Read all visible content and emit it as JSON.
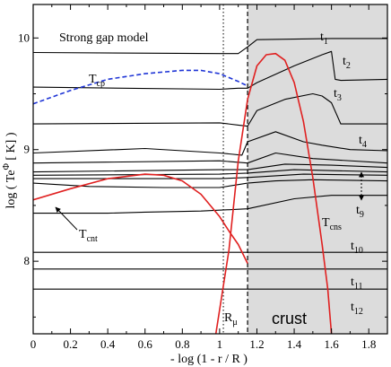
{
  "chart_data": {
    "type": "line",
    "title": "Strong gap model",
    "xlabel": "- log (1 - r / R )",
    "ylabel": "log ( Te",
    "ylabel_sup": "Φ",
    "ylabel_tail": " [ K] )",
    "xlim": [
      0,
      1.9
    ],
    "ylim": [
      7.35,
      10.3
    ],
    "xticks": [
      0,
      0.2,
      0.4,
      0.6,
      0.8,
      1,
      1.2,
      1.4,
      1.6,
      1.8
    ],
    "xtick_labels": [
      "0",
      "0.2",
      "0.4",
      "0.6",
      "0.8",
      "1",
      "1.2",
      "1.4",
      "1.6",
      "1.8"
    ],
    "yticks": [
      8,
      9,
      10
    ],
    "ytick_labels": [
      "8",
      "9",
      "10"
    ],
    "grid": false,
    "legend": "none",
    "crust_region": {
      "x_from": 1.15,
      "x_to": 1.9,
      "color": "#dcdcdc",
      "label": "crust"
    },
    "vlines": [
      {
        "name": "R_mu",
        "x": 1.02,
        "style": "dotted"
      },
      {
        "name": "crust_boundary",
        "x": 1.15,
        "style": "dashed"
      }
    ],
    "labels": {
      "t1": {
        "main": "t",
        "sub": "1"
      },
      "t2": {
        "main": "t",
        "sub": "2"
      },
      "t3": {
        "main": "t",
        "sub": "3"
      },
      "t4": {
        "main": "t",
        "sub": "4"
      },
      "t9": {
        "main": "t",
        "sub": "9"
      },
      "t10": {
        "main": "t",
        "sub": "10"
      },
      "t11": {
        "main": "t",
        "sub": "11"
      },
      "t12": {
        "main": "t",
        "sub": "12"
      },
      "tcp": {
        "main": "T",
        "sub": "cp"
      },
      "tcnt": {
        "main": "T",
        "sub": "cnt"
      },
      "tcns": {
        "main": "T",
        "sub": "cns"
      },
      "rmu": {
        "main": "R",
        "sub": "μ"
      }
    },
    "series": [
      {
        "id": "t1",
        "color": "#000000",
        "style": "solid",
        "x": [
          0,
          1.0,
          1.1,
          1.15,
          1.2,
          1.4,
          1.6,
          1.9
        ],
        "y": [
          9.87,
          9.86,
          9.86,
          9.92,
          9.985,
          9.99,
          9.995,
          9.995
        ]
      },
      {
        "id": "t2",
        "color": "#000000",
        "style": "solid",
        "x": [
          0,
          1.0,
          1.1,
          1.15,
          1.2,
          1.4,
          1.55,
          1.6,
          1.62,
          1.65,
          1.9
        ],
        "y": [
          9.56,
          9.54,
          9.55,
          9.55,
          9.6,
          9.75,
          9.85,
          9.88,
          9.63,
          9.62,
          9.63
        ]
      },
      {
        "id": "t3",
        "color": "#000000",
        "style": "solid",
        "x": [
          0,
          1.0,
          1.1,
          1.15,
          1.2,
          1.35,
          1.5,
          1.55,
          1.6,
          1.65,
          1.9
        ],
        "y": [
          9.23,
          9.24,
          9.22,
          9.21,
          9.35,
          9.45,
          9.5,
          9.48,
          9.42,
          9.23,
          9.23
        ]
      },
      {
        "id": "t4",
        "color": "#000000",
        "style": "solid",
        "x": [
          0,
          0.6,
          1.0,
          1.12,
          1.15,
          1.3,
          1.45,
          1.55,
          1.7,
          1.9
        ],
        "y": [
          8.97,
          9.01,
          8.97,
          8.95,
          9.07,
          9.16,
          9.07,
          9.04,
          9.0,
          8.99
        ]
      },
      {
        "id": "t5",
        "color": "#000000",
        "style": "solid",
        "x": [
          0,
          1.0,
          1.15,
          1.3,
          1.5,
          1.9
        ],
        "y": [
          8.88,
          8.9,
          8.88,
          8.97,
          8.92,
          8.88
        ]
      },
      {
        "id": "t6",
        "color": "#000000",
        "style": "solid",
        "x": [
          0,
          1.0,
          1.15,
          1.35,
          1.6,
          1.9
        ],
        "y": [
          8.8,
          8.82,
          8.82,
          8.87,
          8.86,
          8.84
        ]
      },
      {
        "id": "t7",
        "color": "#000000",
        "style": "solid",
        "x": [
          0,
          1.0,
          1.15,
          1.4,
          1.9
        ],
        "y": [
          8.77,
          8.78,
          8.79,
          8.82,
          8.8
        ]
      },
      {
        "id": "t8",
        "color": "#000000",
        "style": "solid",
        "x": [
          0,
          1.0,
          1.15,
          1.45,
          1.9
        ],
        "y": [
          8.74,
          8.74,
          8.75,
          8.78,
          8.77
        ]
      },
      {
        "id": "t8b",
        "color": "#000000",
        "style": "solid",
        "x": [
          0,
          0.3,
          0.7,
          1.0,
          1.15,
          1.3,
          1.5,
          1.9
        ],
        "y": [
          8.7,
          8.67,
          8.66,
          8.66,
          8.7,
          8.72,
          8.73,
          8.72
        ]
      },
      {
        "id": "t9",
        "color": "#000000",
        "style": "solid",
        "x": [
          0,
          0.4,
          0.6,
          0.9,
          1.15,
          1.4,
          1.6,
          1.9
        ],
        "y": [
          8.43,
          8.43,
          8.44,
          8.45,
          8.47,
          8.56,
          8.59,
          8.59
        ]
      },
      {
        "id": "t10",
        "color": "#000000",
        "style": "solid",
        "x": [
          0,
          1.9
        ],
        "y": [
          8.08,
          8.08
        ]
      },
      {
        "id": "t11",
        "color": "#000000",
        "style": "solid",
        "x": [
          0,
          1.9
        ],
        "y": [
          7.93,
          7.93
        ]
      },
      {
        "id": "t12",
        "color": "#000000",
        "style": "solid",
        "x": [
          0,
          1.9
        ],
        "y": [
          7.75,
          7.75
        ]
      },
      {
        "id": "Tcp",
        "color": "#1f35d6",
        "style": "dashed",
        "x": [
          0,
          0.2,
          0.4,
          0.6,
          0.8,
          0.9,
          1.0,
          1.1,
          1.15
        ],
        "y": [
          9.41,
          9.53,
          9.63,
          9.68,
          9.71,
          9.71,
          9.68,
          9.61,
          9.57
        ]
      },
      {
        "id": "Tcnt",
        "color": "#e02020",
        "style": "solid",
        "x": [
          0,
          0.2,
          0.4,
          0.6,
          0.7,
          0.8,
          0.9,
          1.0,
          1.05,
          1.1,
          1.15
        ],
        "y": [
          8.55,
          8.65,
          8.74,
          8.78,
          8.77,
          8.72,
          8.6,
          8.4,
          8.27,
          8.15,
          7.98
        ]
      },
      {
        "id": "Tcns",
        "color": "#e02020",
        "style": "solid",
        "x": [
          0.98,
          1.05,
          1.1,
          1.15,
          1.2,
          1.25,
          1.3,
          1.35,
          1.4,
          1.45,
          1.5,
          1.55,
          1.58,
          1.6
        ],
        "y": [
          7.35,
          8.1,
          8.9,
          9.45,
          9.75,
          9.85,
          9.86,
          9.8,
          9.6,
          9.25,
          8.75,
          8.15,
          7.75,
          7.35
        ]
      }
    ]
  }
}
